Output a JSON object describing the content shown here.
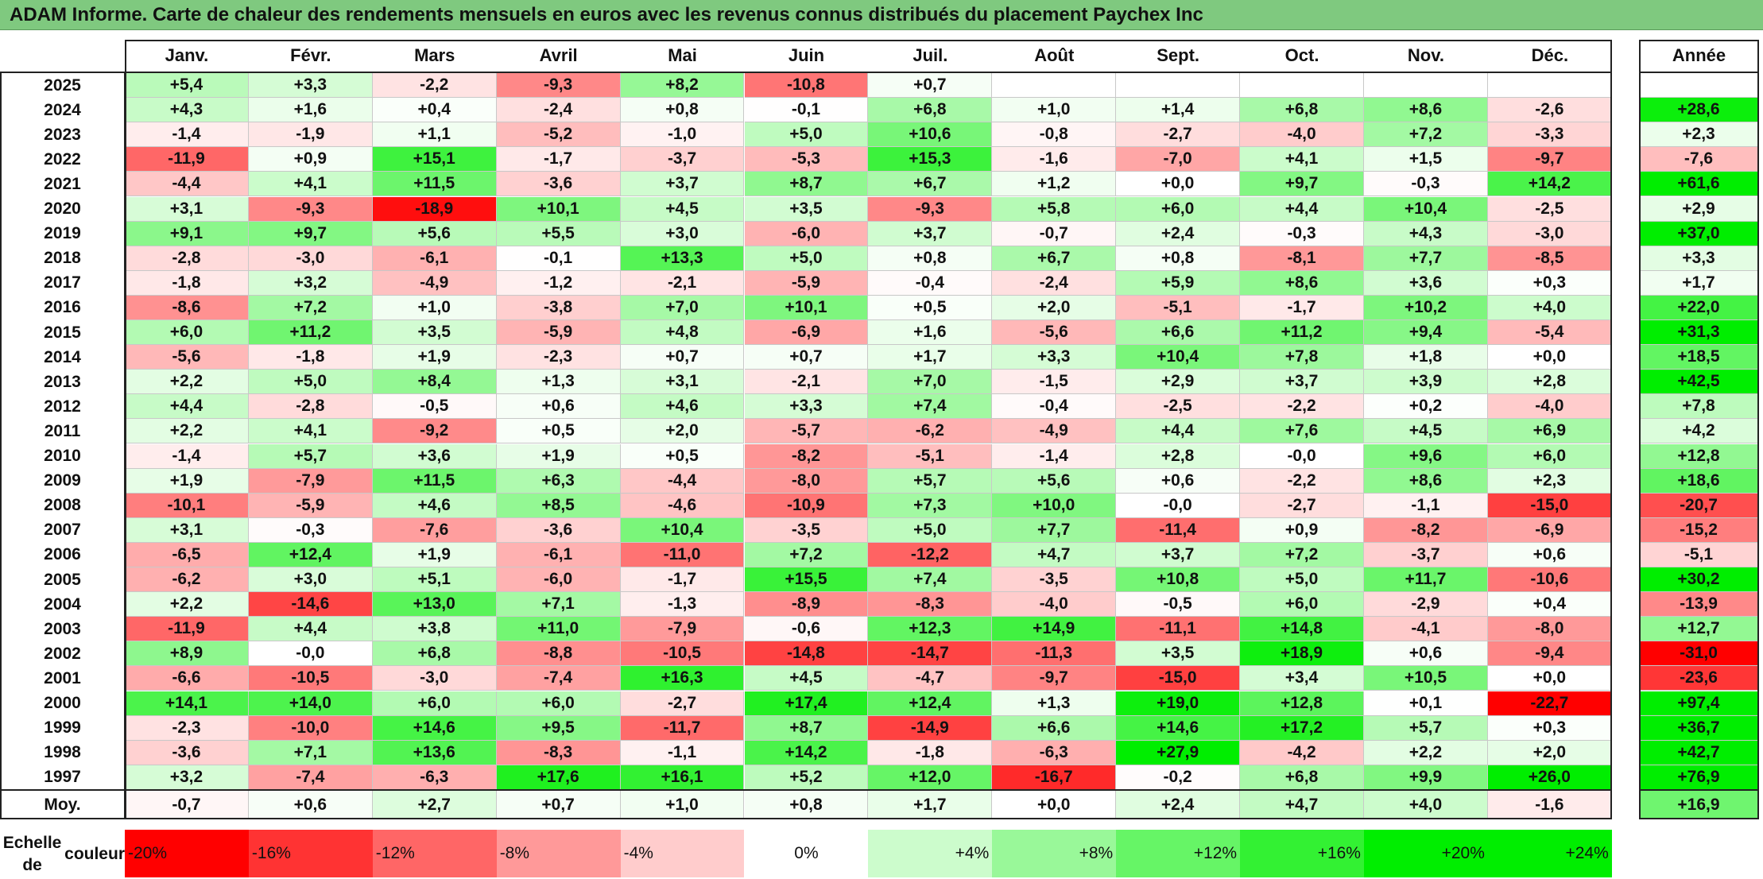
{
  "title": "ADAM Informe. Carte de chaleur des rendements mensuels en euros avec les revenus connus distribués du placement Paychex Inc",
  "chart_data": {
    "type": "heatmap",
    "title": "ADAM Informe. Carte de chaleur des rendements mensuels en euros avec les revenus connus distribués du placement Paychex Inc",
    "columns": [
      "Janv.",
      "Févr.",
      "Mars",
      "Avril",
      "Mai",
      "Juin",
      "Juil.",
      "Août",
      "Sept.",
      "Oct.",
      "Nov.",
      "Déc."
    ],
    "year_column_label": "Année",
    "rows": [
      {
        "year": "2025",
        "values": [
          "+5,4",
          "+3,3",
          "-2,2",
          "-9,3",
          "+8,2",
          "-10,8",
          "+0,7",
          "",
          "",
          "",
          "",
          ""
        ],
        "annual": ""
      },
      {
        "year": "2024",
        "values": [
          "+4,3",
          "+1,6",
          "+0,4",
          "-2,4",
          "+0,8",
          "-0,1",
          "+6,8",
          "+1,0",
          "+1,4",
          "+6,8",
          "+8,6",
          "-2,6"
        ],
        "annual": "+28,6"
      },
      {
        "year": "2023",
        "values": [
          "-1,4",
          "-1,9",
          "+1,1",
          "-5,2",
          "-1,0",
          "+5,0",
          "+10,6",
          "-0,8",
          "-2,7",
          "-4,0",
          "+7,2",
          "-3,3"
        ],
        "annual": "+2,3"
      },
      {
        "year": "2022",
        "values": [
          "-11,9",
          "+0,9",
          "+15,1",
          "-1,7",
          "-3,7",
          "-5,3",
          "+15,3",
          "-1,6",
          "-7,0",
          "+4,1",
          "+1,5",
          "-9,7"
        ],
        "annual": "-7,6"
      },
      {
        "year": "2021",
        "values": [
          "-4,4",
          "+4,1",
          "+11,5",
          "-3,6",
          "+3,7",
          "+8,7",
          "+6,7",
          "+1,2",
          "+0,0",
          "+9,7",
          "-0,3",
          "+14,2"
        ],
        "annual": "+61,6"
      },
      {
        "year": "2020",
        "values": [
          "+3,1",
          "-9,3",
          "-18,9",
          "+10,1",
          "+4,5",
          "+3,5",
          "-9,3",
          "+5,8",
          "+6,0",
          "+4,4",
          "+10,4",
          "-2,5"
        ],
        "annual": "+2,9"
      },
      {
        "year": "2019",
        "values": [
          "+9,1",
          "+9,7",
          "+5,6",
          "+5,5",
          "+3,0",
          "-6,0",
          "+3,7",
          "-0,7",
          "+2,4",
          "-0,3",
          "+4,3",
          "-3,0"
        ],
        "annual": "+37,0"
      },
      {
        "year": "2018",
        "values": [
          "-2,8",
          "-3,0",
          "-6,1",
          "-0,1",
          "+13,3",
          "+5,0",
          "+0,8",
          "+6,7",
          "+0,8",
          "-8,1",
          "+7,7",
          "-8,5"
        ],
        "annual": "+3,3"
      },
      {
        "year": "2017",
        "values": [
          "-1,8",
          "+3,2",
          "-4,9",
          "-1,2",
          "-2,1",
          "-5,9",
          "-0,4",
          "-2,4",
          "+5,9",
          "+8,6",
          "+3,6",
          "+0,3"
        ],
        "annual": "+1,7"
      },
      {
        "year": "2016",
        "values": [
          "-8,6",
          "+7,2",
          "+1,0",
          "-3,8",
          "+7,0",
          "+10,1",
          "+0,5",
          "+2,0",
          "-5,1",
          "-1,7",
          "+10,2",
          "+4,0"
        ],
        "annual": "+22,0"
      },
      {
        "year": "2015",
        "values": [
          "+6,0",
          "+11,2",
          "+3,5",
          "-5,9",
          "+4,8",
          "-6,9",
          "+1,6",
          "-5,6",
          "+6,6",
          "+11,2",
          "+9,4",
          "-5,4"
        ],
        "annual": "+31,3"
      },
      {
        "year": "2014",
        "values": [
          "-5,6",
          "-1,8",
          "+1,9",
          "-2,3",
          "+0,7",
          "+0,7",
          "+1,7",
          "+3,3",
          "+10,4",
          "+7,8",
          "+1,8",
          "+0,0"
        ],
        "annual": "+18,5"
      },
      {
        "year": "2013",
        "values": [
          "+2,2",
          "+5,0",
          "+8,4",
          "+1,3",
          "+3,1",
          "-2,1",
          "+7,0",
          "-1,5",
          "+2,9",
          "+3,7",
          "+3,9",
          "+2,8"
        ],
        "annual": "+42,5"
      },
      {
        "year": "2012",
        "values": [
          "+4,4",
          "-2,8",
          "-0,5",
          "+0,6",
          "+4,6",
          "+3,3",
          "+7,4",
          "-0,4",
          "-2,5",
          "-2,2",
          "+0,2",
          "-4,0"
        ],
        "annual": "+7,8"
      },
      {
        "year": "2011",
        "values": [
          "+2,2",
          "+4,1",
          "-9,2",
          "+0,5",
          "+2,0",
          "-5,7",
          "-6,2",
          "-4,9",
          "+4,4",
          "+7,6",
          "+4,5",
          "+6,9"
        ],
        "annual": "+4,2"
      },
      {
        "year": "2010",
        "values": [
          "-1,4",
          "+5,7",
          "+3,6",
          "+1,9",
          "+0,5",
          "-8,2",
          "-5,1",
          "-1,4",
          "+2,8",
          "-0,0",
          "+9,6",
          "+6,0"
        ],
        "annual": "+12,8"
      },
      {
        "year": "2009",
        "values": [
          "+1,9",
          "-7,9",
          "+11,5",
          "+6,3",
          "-4,4",
          "-8,0",
          "+5,7",
          "+5,6",
          "+0,6",
          "-2,2",
          "+8,6",
          "+2,3"
        ],
        "annual": "+18,6"
      },
      {
        "year": "2008",
        "values": [
          "-10,1",
          "-5,9",
          "+4,6",
          "+8,5",
          "-4,6",
          "-10,9",
          "+7,3",
          "+10,0",
          "-0,0",
          "-2,7",
          "-1,1",
          "-15,0"
        ],
        "annual": "-20,7"
      },
      {
        "year": "2007",
        "values": [
          "+3,1",
          "-0,3",
          "-7,6",
          "-3,6",
          "+10,4",
          "-3,5",
          "+5,0",
          "+7,7",
          "-11,4",
          "+0,9",
          "-8,2",
          "-6,9"
        ],
        "annual": "-15,2"
      },
      {
        "year": "2006",
        "values": [
          "-6,5",
          "+12,4",
          "+1,9",
          "-6,1",
          "-11,0",
          "+7,2",
          "-12,2",
          "+4,7",
          "+3,7",
          "+7,2",
          "-3,7",
          "+0,6"
        ],
        "annual": "-5,1"
      },
      {
        "year": "2005",
        "values": [
          "-6,2",
          "+3,0",
          "+5,1",
          "-6,0",
          "-1,7",
          "+15,5",
          "+7,4",
          "-3,5",
          "+10,8",
          "+5,0",
          "+11,7",
          "-10,6"
        ],
        "annual": "+30,2"
      },
      {
        "year": "2004",
        "values": [
          "+2,2",
          "-14,6",
          "+13,0",
          "+7,1",
          "-1,3",
          "-8,9",
          "-8,3",
          "-4,0",
          "-0,5",
          "+6,0",
          "-2,9",
          "+0,4"
        ],
        "annual": "-13,9"
      },
      {
        "year": "2003",
        "values": [
          "-11,9",
          "+4,4",
          "+3,8",
          "+11,0",
          "-7,9",
          "-0,6",
          "+12,3",
          "+14,9",
          "-11,1",
          "+14,8",
          "-4,1",
          "-8,0"
        ],
        "annual": "+12,7"
      },
      {
        "year": "2002",
        "values": [
          "+8,9",
          "-0,0",
          "+6,8",
          "-8,8",
          "-10,5",
          "-14,8",
          "-14,7",
          "-11,3",
          "+3,5",
          "+18,9",
          "+0,6",
          "-9,4"
        ],
        "annual": "-31,0"
      },
      {
        "year": "2001",
        "values": [
          "-6,6",
          "-10,5",
          "-3,0",
          "-7,4",
          "+16,3",
          "+4,5",
          "-4,7",
          "-9,7",
          "-15,0",
          "+3,4",
          "+10,5",
          "+0,0"
        ],
        "annual": "-23,6"
      },
      {
        "year": "2000",
        "values": [
          "+14,1",
          "+14,0",
          "+6,0",
          "+6,0",
          "-2,7",
          "+17,4",
          "+12,4",
          "+1,3",
          "+19,0",
          "+12,8",
          "+0,1",
          "-22,7"
        ],
        "annual": "+97,4"
      },
      {
        "year": "1999",
        "values": [
          "-2,3",
          "-10,0",
          "+14,6",
          "+9,5",
          "-11,7",
          "+8,7",
          "-14,9",
          "+6,6",
          "+14,6",
          "+17,2",
          "+5,7",
          "+0,3"
        ],
        "annual": "+36,7"
      },
      {
        "year": "1998",
        "values": [
          "-3,6",
          "+7,1",
          "+13,6",
          "-8,3",
          "-1,1",
          "+14,2",
          "-1,8",
          "-6,3",
          "+27,9",
          "-4,2",
          "+2,2",
          "+2,0"
        ],
        "annual": "+42,7"
      },
      {
        "year": "1997",
        "values": [
          "+3,2",
          "-7,4",
          "-6,3",
          "+17,6",
          "+16,1",
          "+5,2",
          "+12,0",
          "-16,7",
          "-0,2",
          "+6,8",
          "+9,9",
          "+26,0"
        ],
        "annual": "+76,9"
      }
    ],
    "average": {
      "label": "Moy.",
      "values": [
        "-0,7",
        "+0,6",
        "+2,7",
        "+0,7",
        "+1,0",
        "+0,8",
        "+1,7",
        "+0,0",
        "+2,4",
        "+4,7",
        "+4,0",
        "-1,6"
      ],
      "annual": "+16,9"
    },
    "color_scale": {
      "title_line1": "Echelle de",
      "title_line2": "couleur",
      "labels": [
        "-20%",
        "-16%",
        "-12%",
        "-8%",
        "-4%",
        "0%",
        "+4%",
        "+8%",
        "+12%",
        "+16%",
        "+20%",
        "+24%"
      ],
      "values": [
        -20,
        -16,
        -12,
        -8,
        -4,
        0,
        4,
        8,
        12,
        16,
        20,
        24
      ]
    },
    "colors": {
      "negative_max": "#ff0000",
      "neutral": "#ffffff",
      "positive_max": "#00ee00",
      "title_bar": "#7fc97f"
    }
  }
}
